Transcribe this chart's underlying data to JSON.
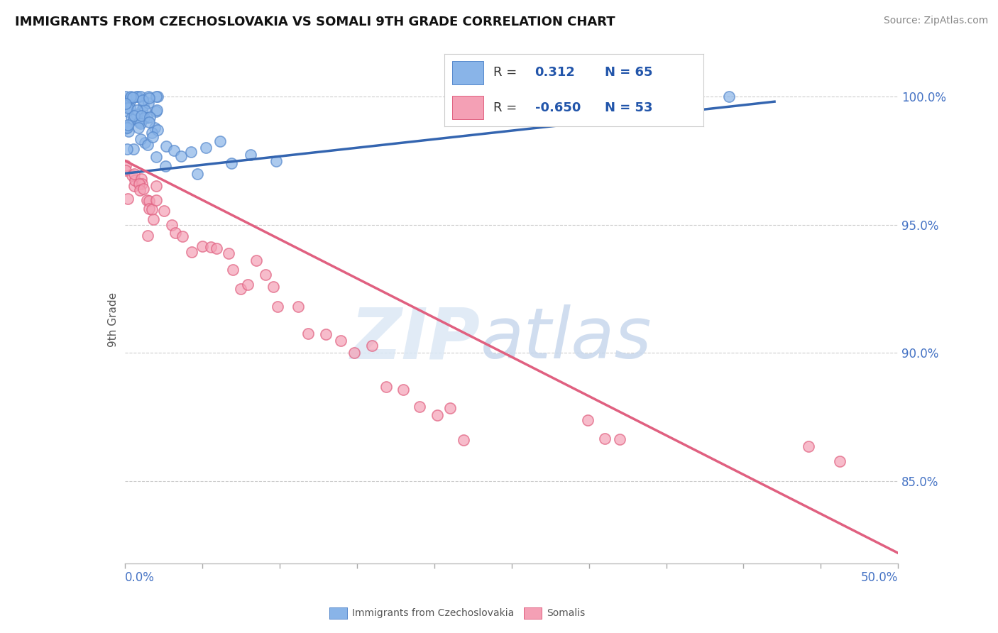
{
  "title": "IMMIGRANTS FROM CZECHOSLOVAKIA VS SOMALI 9TH GRADE CORRELATION CHART",
  "source": "Source: ZipAtlas.com",
  "ylabel": "9th Grade",
  "ylabel_right_ticks": [
    "100.0%",
    "95.0%",
    "90.0%",
    "85.0%"
  ],
  "ylabel_right_vals": [
    1.0,
    0.95,
    0.9,
    0.85
  ],
  "xmin": 0.0,
  "xmax": 0.5,
  "ymin": 0.818,
  "ymax": 1.008,
  "blue_R": 0.312,
  "blue_N": 65,
  "pink_R": -0.65,
  "pink_N": 53,
  "blue_color": "#89b4e8",
  "pink_color": "#f4a0b5",
  "blue_edge_color": "#5588cc",
  "pink_edge_color": "#e06080",
  "blue_line_color": "#3465b0",
  "pink_line_color": "#e06080",
  "watermark_zip": "ZIP",
  "watermark_atlas": "atlas",
  "legend_label_blue": "Immigrants from Czechoslovakia",
  "legend_label_pink": "Somalis",
  "blue_line_x0": 0.0,
  "blue_line_y0": 0.97,
  "blue_line_x1": 0.42,
  "blue_line_y1": 0.998,
  "pink_line_x0": 0.0,
  "pink_line_y0": 0.975,
  "pink_line_x1": 0.5,
  "pink_line_y1": 0.822,
  "blue_points": [
    [
      0.001,
      0.998
    ],
    [
      0.002,
      0.999
    ],
    [
      0.003,
      0.999
    ],
    [
      0.004,
      0.999
    ],
    [
      0.005,
      0.999
    ],
    [
      0.006,
      0.999
    ],
    [
      0.007,
      0.999
    ],
    [
      0.008,
      0.999
    ],
    [
      0.009,
      0.999
    ],
    [
      0.01,
      0.999
    ],
    [
      0.011,
      0.999
    ],
    [
      0.012,
      0.998
    ],
    [
      0.013,
      0.998
    ],
    [
      0.014,
      0.998
    ],
    [
      0.015,
      0.998
    ],
    [
      0.016,
      0.998
    ],
    [
      0.017,
      0.997
    ],
    [
      0.018,
      0.997
    ],
    [
      0.019,
      0.997
    ],
    [
      0.02,
      0.996
    ],
    [
      0.003,
      0.996
    ],
    [
      0.005,
      0.996
    ],
    [
      0.007,
      0.996
    ],
    [
      0.002,
      0.995
    ],
    [
      0.004,
      0.995
    ],
    [
      0.006,
      0.995
    ],
    [
      0.008,
      0.995
    ],
    [
      0.01,
      0.994
    ],
    [
      0.012,
      0.994
    ],
    [
      0.014,
      0.993
    ],
    [
      0.001,
      0.993
    ],
    [
      0.003,
      0.992
    ],
    [
      0.005,
      0.992
    ],
    [
      0.007,
      0.991
    ],
    [
      0.009,
      0.991
    ],
    [
      0.011,
      0.99
    ],
    [
      0.013,
      0.99
    ],
    [
      0.015,
      0.989
    ],
    [
      0.017,
      0.989
    ],
    [
      0.019,
      0.988
    ],
    [
      0.002,
      0.988
    ],
    [
      0.004,
      0.987
    ],
    [
      0.006,
      0.987
    ],
    [
      0.008,
      0.986
    ],
    [
      0.001,
      0.986
    ],
    [
      0.01,
      0.985
    ],
    [
      0.012,
      0.985
    ],
    [
      0.014,
      0.984
    ],
    [
      0.016,
      0.984
    ],
    [
      0.018,
      0.983
    ],
    [
      0.02,
      0.983
    ],
    [
      0.022,
      0.982
    ],
    [
      0.024,
      0.982
    ],
    [
      0.003,
      0.981
    ],
    [
      0.026,
      0.981
    ],
    [
      0.03,
      0.98
    ],
    [
      0.035,
      0.979
    ],
    [
      0.04,
      0.978
    ],
    [
      0.05,
      0.977
    ],
    [
      0.06,
      0.976
    ],
    [
      0.07,
      0.975
    ],
    [
      0.08,
      0.974
    ],
    [
      0.39,
      0.999
    ],
    [
      0.1,
      0.973
    ],
    [
      0.045,
      0.972
    ]
  ],
  "pink_points": [
    [
      0.001,
      0.975
    ],
    [
      0.002,
      0.974
    ],
    [
      0.003,
      0.973
    ],
    [
      0.004,
      0.972
    ],
    [
      0.005,
      0.97
    ],
    [
      0.006,
      0.969
    ],
    [
      0.007,
      0.968
    ],
    [
      0.008,
      0.967
    ],
    [
      0.009,
      0.966
    ],
    [
      0.01,
      0.965
    ],
    [
      0.011,
      0.964
    ],
    [
      0.012,
      0.963
    ],
    [
      0.013,
      0.962
    ],
    [
      0.014,
      0.961
    ],
    [
      0.015,
      0.96
    ],
    [
      0.016,
      0.958
    ],
    [
      0.017,
      0.957
    ],
    [
      0.018,
      0.956
    ],
    [
      0.019,
      0.955
    ],
    [
      0.02,
      0.954
    ],
    [
      0.025,
      0.952
    ],
    [
      0.03,
      0.95
    ],
    [
      0.035,
      0.948
    ],
    [
      0.04,
      0.946
    ],
    [
      0.045,
      0.944
    ],
    [
      0.05,
      0.942
    ],
    [
      0.055,
      0.94
    ],
    [
      0.06,
      0.938
    ],
    [
      0.065,
      0.936
    ],
    [
      0.07,
      0.934
    ],
    [
      0.075,
      0.932
    ],
    [
      0.08,
      0.93
    ],
    [
      0.085,
      0.928
    ],
    [
      0.09,
      0.926
    ],
    [
      0.095,
      0.924
    ],
    [
      0.1,
      0.922
    ],
    [
      0.11,
      0.918
    ],
    [
      0.12,
      0.914
    ],
    [
      0.13,
      0.91
    ],
    [
      0.14,
      0.906
    ],
    [
      0.15,
      0.902
    ],
    [
      0.16,
      0.898
    ],
    [
      0.17,
      0.894
    ],
    [
      0.18,
      0.89
    ],
    [
      0.19,
      0.886
    ],
    [
      0.2,
      0.882
    ],
    [
      0.21,
      0.878
    ],
    [
      0.22,
      0.874
    ],
    [
      0.3,
      0.87
    ],
    [
      0.31,
      0.868
    ],
    [
      0.32,
      0.866
    ],
    [
      0.44,
      0.862
    ],
    [
      0.46,
      0.86
    ]
  ]
}
